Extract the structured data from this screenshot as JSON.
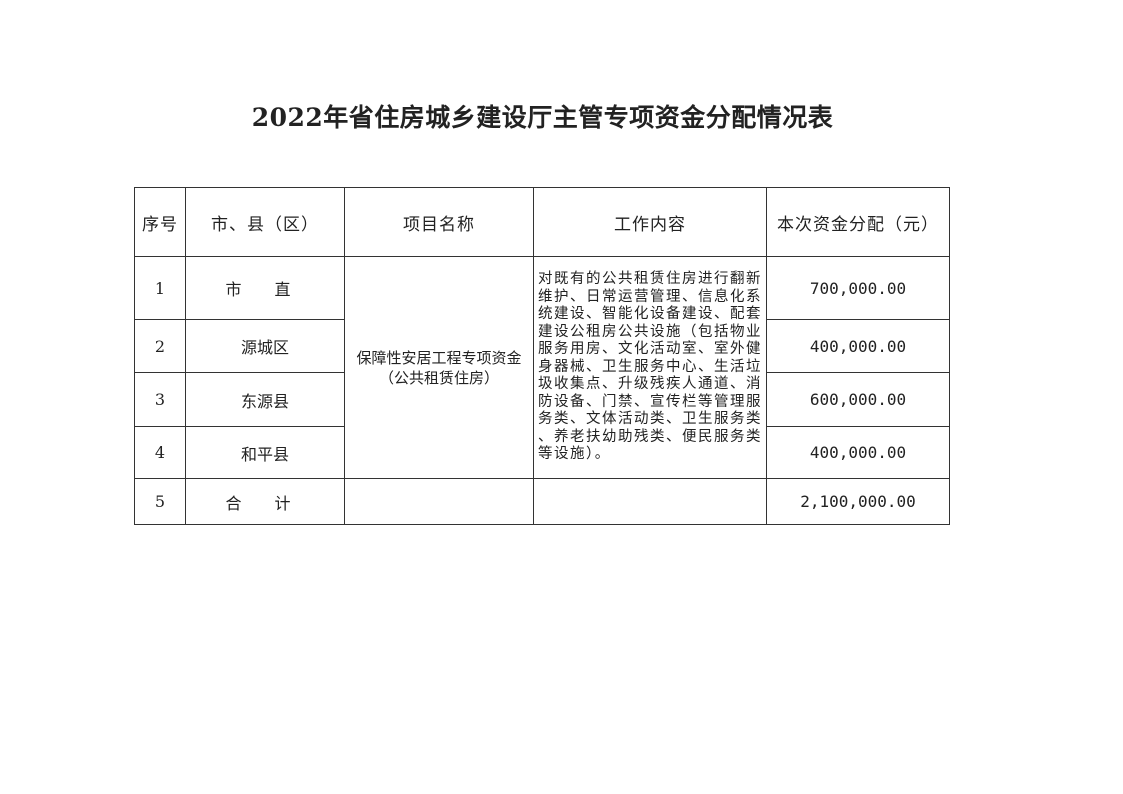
{
  "title": "2022年省住房城乡建设厅主管专项资金分配情况表",
  "headers": [
    "序号",
    "市、县（区）",
    "项目名称",
    "工作内容",
    "本次资金分配（元）"
  ],
  "project_name": [
    "保障性安居工程专项资金",
    "（公共租赁住房）"
  ],
  "work_content": [
    "对既有的公共租赁住房进行翻新",
    "维护、日常运营管理、信息化系",
    "统建设、智能化设备建设、配套",
    "建设公租房公共设施（包括物业",
    "服务用房、文化活动室、室外健",
    "身器械、卫生服务中心、生活垃",
    "圾收集点、升级残疾人通道、消",
    "防设备、门禁、宣传栏等管理服",
    "务类、文体活动类、卫生服务类",
    "、养老扶幼助残类、便民服务类",
    "等设施）。"
  ],
  "rows": [
    {
      "no": "1",
      "area": "市 直",
      "amount": "700,000.00"
    },
    {
      "no": "2",
      "area": "源城区",
      "amount": "400,000.00"
    },
    {
      "no": "3",
      "area": "东源县",
      "amount": "600,000.00"
    },
    {
      "no": "4",
      "area": "和平县",
      "amount": "400,000.00"
    }
  ],
  "total": {
    "no": "5",
    "area": "合 计",
    "amount": "2,100,000.00"
  }
}
